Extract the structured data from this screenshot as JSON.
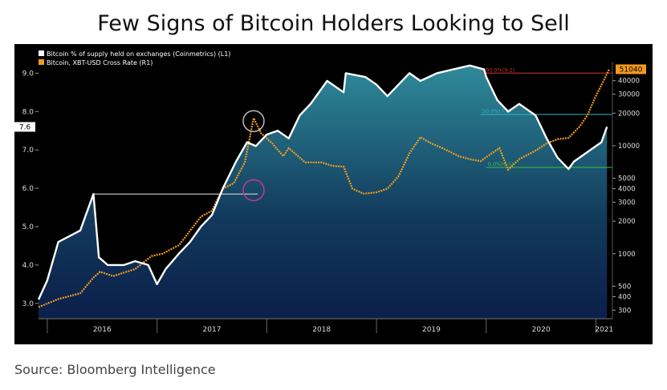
{
  "chart_data": {
    "type": "line",
    "title": "Few Signs of Bitcoin Holders Looking to Sell",
    "source": "Source: Bloomberg Intelligence",
    "legend": [
      "Bitcoin % of supply held on exchanges (Coinmetrics) (L1)",
      "Bitcoin, XBT-USD Cross Rate (R1)"
    ],
    "legend_position": "top-left",
    "x_labels": [
      "2016",
      "2017",
      "2018",
      "2019",
      "2020",
      "2021"
    ],
    "left_axis": {
      "ticks": [
        "9.0",
        "8.0",
        "7.0",
        "6.0",
        "5.0",
        "4.0",
        "3.0"
      ],
      "range": [
        2.6,
        9.3
      ],
      "current_label": "7.6"
    },
    "right_axis": {
      "scale": "log",
      "ticks": [
        "40000",
        "30000",
        "20000",
        "10000",
        "5000",
        "4000",
        "3000",
        "2000",
        "1000",
        "500",
        "400",
        "300"
      ],
      "range": [
        250,
        60000
      ],
      "current_label": "51040"
    },
    "fib_labels": [
      "100.0%(9.2)",
      "50.0%(7.6)",
      "0.0%(6.5)"
    ],
    "series": [
      {
        "name": "Bitcoin % of supply held on exchanges (Coinmetrics) (L1)",
        "color": "#ffffff",
        "x": [
          2015.92,
          2016.0,
          2016.1,
          2016.3,
          2016.42,
          2016.47,
          2016.55,
          2016.7,
          2016.8,
          2016.92,
          2017.0,
          2017.08,
          2017.2,
          2017.3,
          2017.4,
          2017.5,
          2017.6,
          2017.72,
          2017.82,
          2017.9,
          2018.0,
          2018.1,
          2018.2,
          2018.3,
          2018.4,
          2018.55,
          2018.7,
          2018.72,
          2018.9,
          2019.0,
          2019.1,
          2019.2,
          2019.3,
          2019.4,
          2019.55,
          2019.7,
          2019.85,
          2019.98,
          2020.0,
          2020.1,
          2020.2,
          2020.3,
          2020.45,
          2020.55,
          2020.65,
          2020.75,
          2020.8,
          2020.9,
          2021.0,
          2021.05,
          2021.1
        ],
        "y": [
          3.1,
          3.6,
          4.6,
          4.9,
          5.85,
          4.2,
          4.0,
          4.0,
          4.1,
          4.0,
          3.5,
          3.9,
          4.3,
          4.6,
          5.0,
          5.3,
          6.0,
          6.7,
          7.2,
          7.1,
          7.4,
          7.5,
          7.3,
          7.9,
          8.2,
          8.8,
          8.5,
          9.0,
          8.9,
          8.7,
          8.4,
          8.7,
          9.0,
          8.8,
          9.0,
          9.1,
          9.2,
          9.1,
          8.9,
          8.3,
          8.0,
          8.2,
          7.9,
          7.3,
          6.8,
          6.5,
          6.7,
          6.9,
          7.1,
          7.2,
          7.6
        ]
      },
      {
        "name": "Bitcoin, XBT-USD Cross Rate (R1)",
        "color": "#f39a1e",
        "x": [
          2015.92,
          2016.1,
          2016.3,
          2016.42,
          2016.48,
          2016.6,
          2016.8,
          2016.95,
          2017.05,
          2017.2,
          2017.4,
          2017.5,
          2017.6,
          2017.7,
          2017.8,
          2017.88,
          2017.95,
          2018.05,
          2018.15,
          2018.2,
          2018.35,
          2018.5,
          2018.6,
          2018.7,
          2018.78,
          2018.88,
          2019.0,
          2019.1,
          2019.2,
          2019.3,
          2019.4,
          2019.5,
          2019.6,
          2019.75,
          2019.85,
          2019.95,
          2020.05,
          2020.12,
          2020.2,
          2020.3,
          2020.45,
          2020.55,
          2020.65,
          2020.75,
          2020.85,
          2020.92,
          2021.0,
          2021.07,
          2021.12
        ],
        "y": [
          320,
          380,
          430,
          600,
          680,
          620,
          720,
          950,
          1000,
          1200,
          2200,
          2500,
          4000,
          4500,
          7000,
          18000,
          13000,
          10500,
          8000,
          9500,
          7000,
          7000,
          6500,
          6400,
          4000,
          3600,
          3700,
          4000,
          5200,
          8500,
          12000,
          10500,
          9500,
          8000,
          7500,
          7200,
          8500,
          9500,
          6000,
          7500,
          9000,
          10500,
          11500,
          11800,
          15000,
          19000,
          29000,
          40000,
          51040
        ]
      }
    ]
  }
}
